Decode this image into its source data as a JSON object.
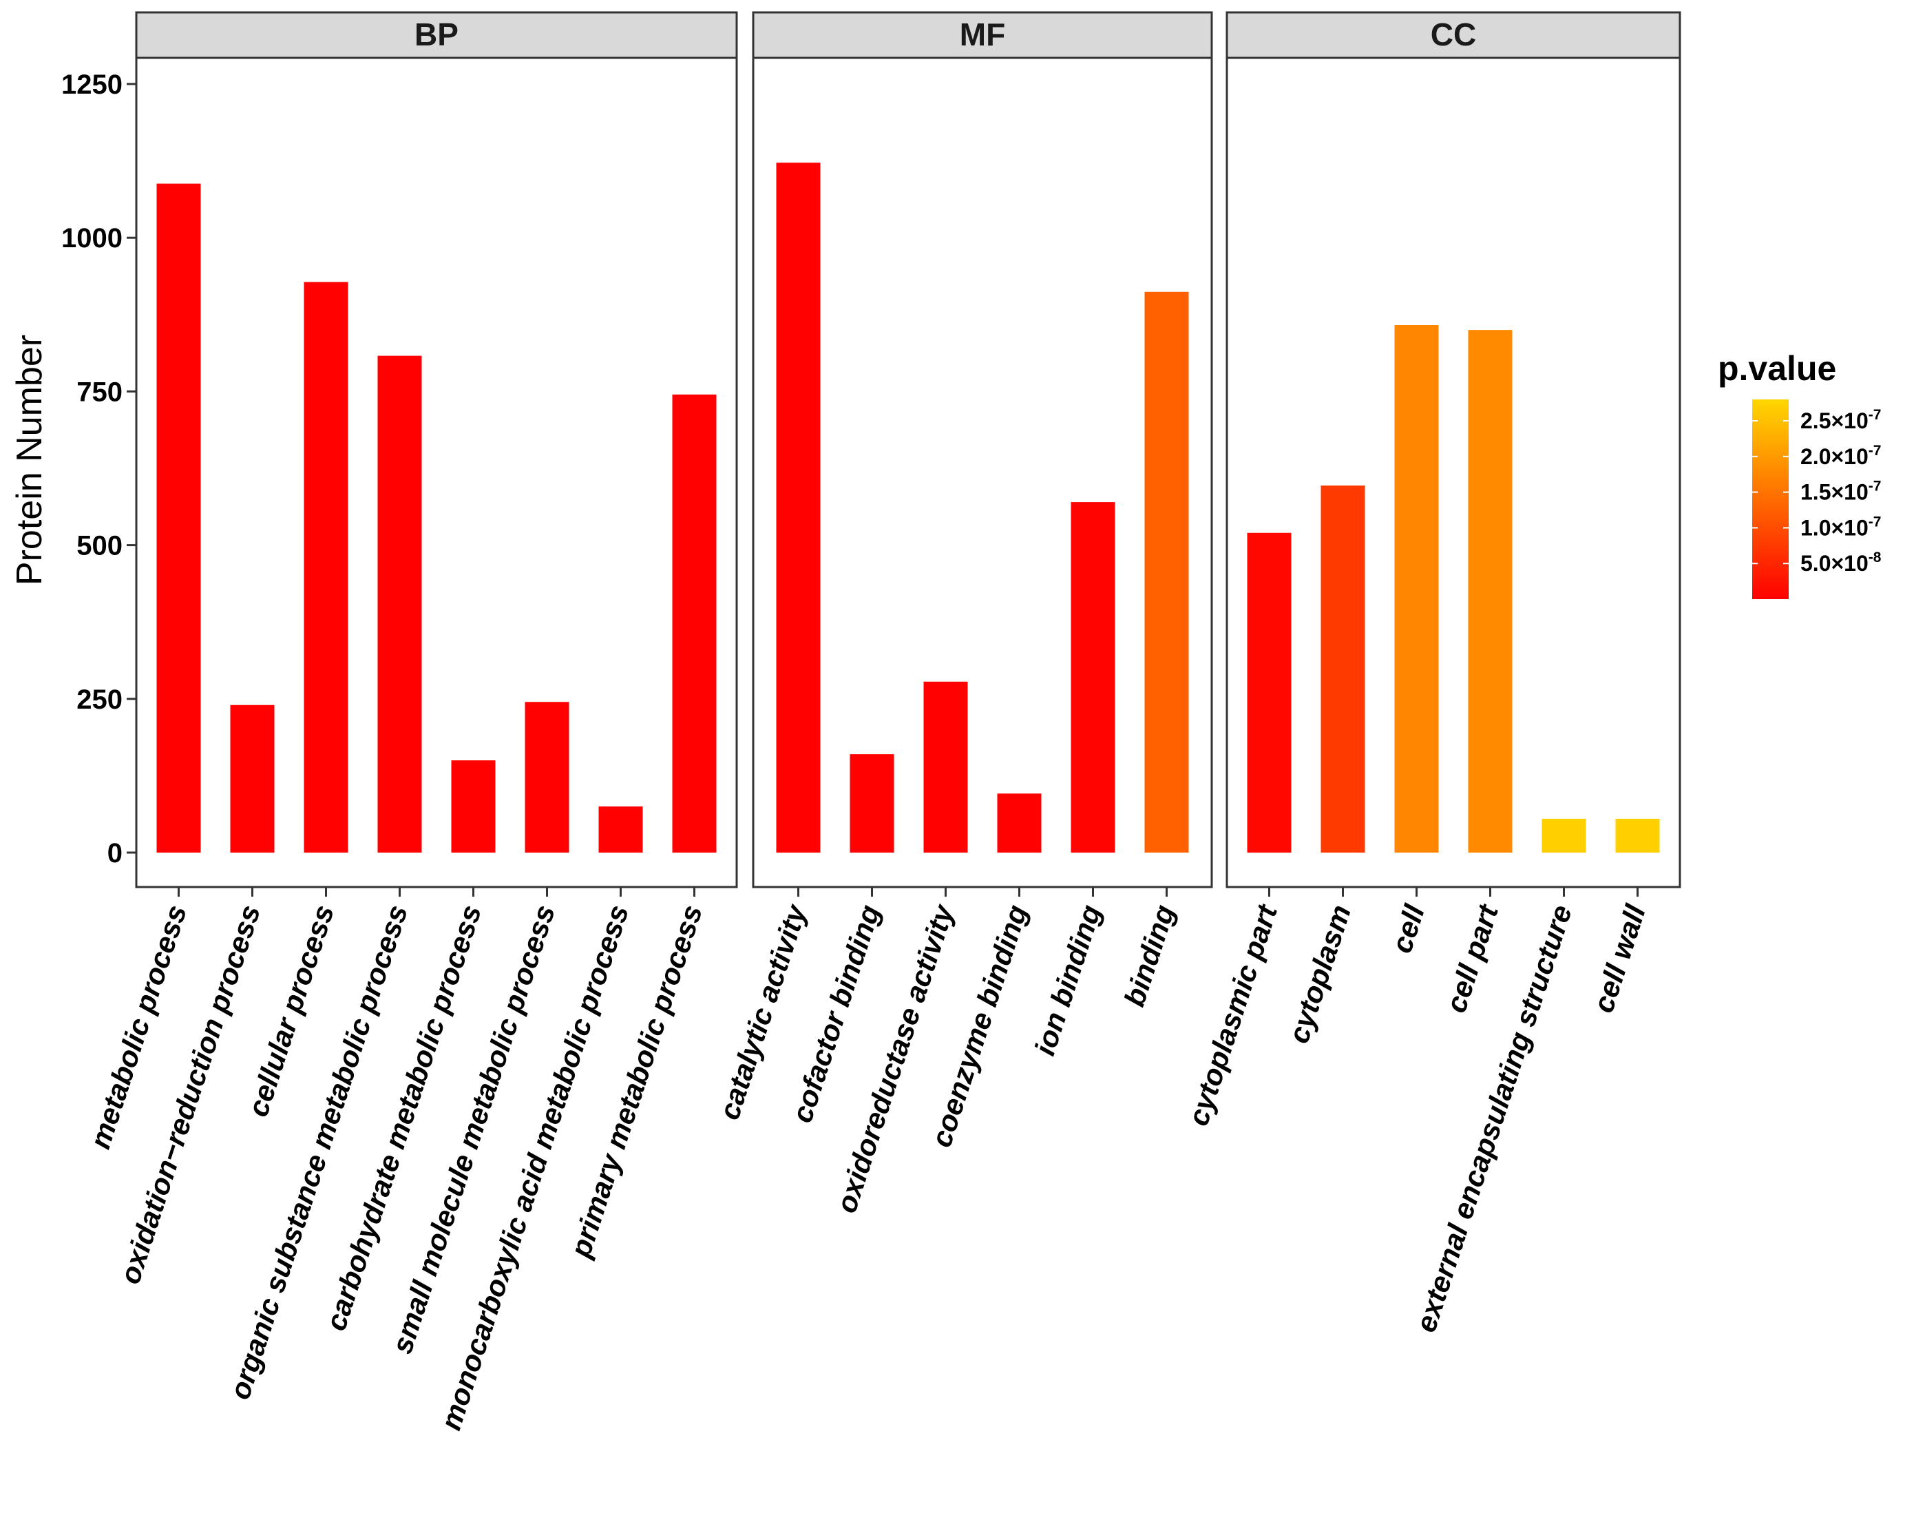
{
  "chart_data": {
    "type": "bar",
    "ylabel": "Protein Number",
    "xlabel": "",
    "ylim": [
      0,
      1350
    ],
    "yticks": [
      0,
      250,
      500,
      750,
      1000,
      1250
    ],
    "ytick_labels": [
      "0",
      "250",
      "500",
      "750",
      "1000",
      "1250"
    ],
    "facets": [
      {
        "name": "BP",
        "categories": [
          "metabolic process",
          "oxidation−reduction process",
          "cellular process",
          "organic substance metabolic process",
          "carbohydrate metabolic process",
          "small molecule metabolic process",
          "monocarboxylic acid metabolic process",
          "primary metabolic process"
        ],
        "values": [
          1088,
          240,
          928,
          808,
          150,
          245,
          75,
          745
        ],
        "p_values": [
          1e-09,
          1e-09,
          1e-09,
          1e-09,
          1e-09,
          1e-09,
          1e-09,
          1e-09
        ]
      },
      {
        "name": "MF",
        "categories": [
          "catalytic activity",
          "cofactor binding",
          "oxidoreductase activity",
          "coenzyme binding",
          "ion binding",
          "binding"
        ],
        "values": [
          1122,
          160,
          278,
          96,
          570,
          912
        ],
        "p_values": [
          1e-09,
          1e-09,
          2e-09,
          3e-09,
          5e-09,
          1.25e-07
        ]
      },
      {
        "name": "CC",
        "categories": [
          "cytoplasmic part",
          "cytoplasm",
          "cell",
          "cell part",
          "external encapsulating structure",
          "cell wall"
        ],
        "values": [
          520,
          597,
          858,
          850,
          55,
          55
        ],
        "p_values": [
          1e-08,
          7.5e-08,
          1.75e-07,
          1.8e-07,
          2.7e-07,
          2.7e-07
        ]
      }
    ],
    "legend": {
      "title": "p.value",
      "position": "right",
      "labels": [
        {
          "mantissa": "2.5×10",
          "exp": "-7"
        },
        {
          "mantissa": "2.0×10",
          "exp": "-7"
        },
        {
          "mantissa": "1.5×10",
          "exp": "-7"
        },
        {
          "mantissa": "1.0×10",
          "exp": "-7"
        },
        {
          "mantissa": "5.0×10",
          "exp": "-8"
        }
      ],
      "label_values": [
        2.5e-07,
        2e-07,
        1.5e-07,
        1e-07,
        5e-08
      ],
      "range": [
        0,
        2.8e-07
      ],
      "color_low": "#ff0000",
      "color_high": "#ffd700"
    }
  }
}
